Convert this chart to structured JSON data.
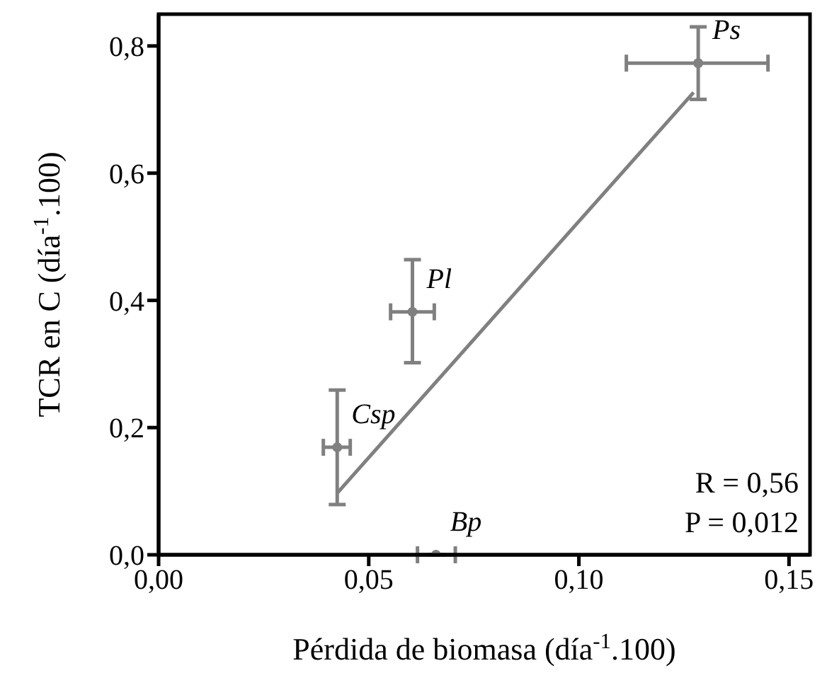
{
  "chart_data": {
    "type": "scatter",
    "xlabel": "Pérdida de biomasa (día$^{-1}$.100)",
    "ylabel": "TCR en C (día$^{-1}$.100)",
    "xlim": [
      0,
      0.155
    ],
    "ylim": [
      0,
      0.85
    ],
    "xticks": [
      {
        "value": 0,
        "label": "0,00"
      },
      {
        "value": 0.05,
        "label": "0,05"
      },
      {
        "value": 0.1,
        "label": "0,10"
      },
      {
        "value": 0.15,
        "label": "0,15"
      }
    ],
    "yticks": [
      {
        "value": 0,
        "label": "0,0"
      },
      {
        "value": 0.2,
        "label": "0,2"
      },
      {
        "value": 0.4,
        "label": "0,4"
      },
      {
        "value": 0.6,
        "label": "0,6"
      },
      {
        "value": 0.8,
        "label": "0,8"
      }
    ],
    "grid": false,
    "marker": "circle",
    "series": [
      {
        "color": "#808080",
        "x": [
          0.1284,
          0.0604,
          0.0425,
          0.066
        ],
        "values": [
          0.773,
          0.382,
          0.169,
          0
        ],
        "errors": [
          [
            0.716,
            0.83
          ],
          [
            0.302,
            0.464
          ],
          [
            0.079,
            0.259
          ],
          null
        ],
        "xerrors": [
          [
            0.1113,
            0.145
          ],
          [
            0.0552,
            0.0656
          ],
          [
            0.0392,
            0.0456
          ],
          [
            0.0616,
            0.0706
          ]
        ]
      },
      {
        "type": "line",
        "color": "#808080",
        "marker": "none",
        "x": [
          0.0425,
          0.1273
        ],
        "values": [
          0.097,
          0.727
        ]
      }
    ],
    "annotations": [
      {
        "text": "Ps",
        "x": 0.1284,
        "y": 0.773
      },
      {
        "text": "Pl",
        "x": 0.0604,
        "y": 0.382
      },
      {
        "text": "Csp",
        "x": 0.0425,
        "y": 0.169
      },
      {
        "text": "Bp",
        "x": 0.066,
        "y": 0
      },
      "R = 0,56",
      "P = 0,012"
    ]
  }
}
